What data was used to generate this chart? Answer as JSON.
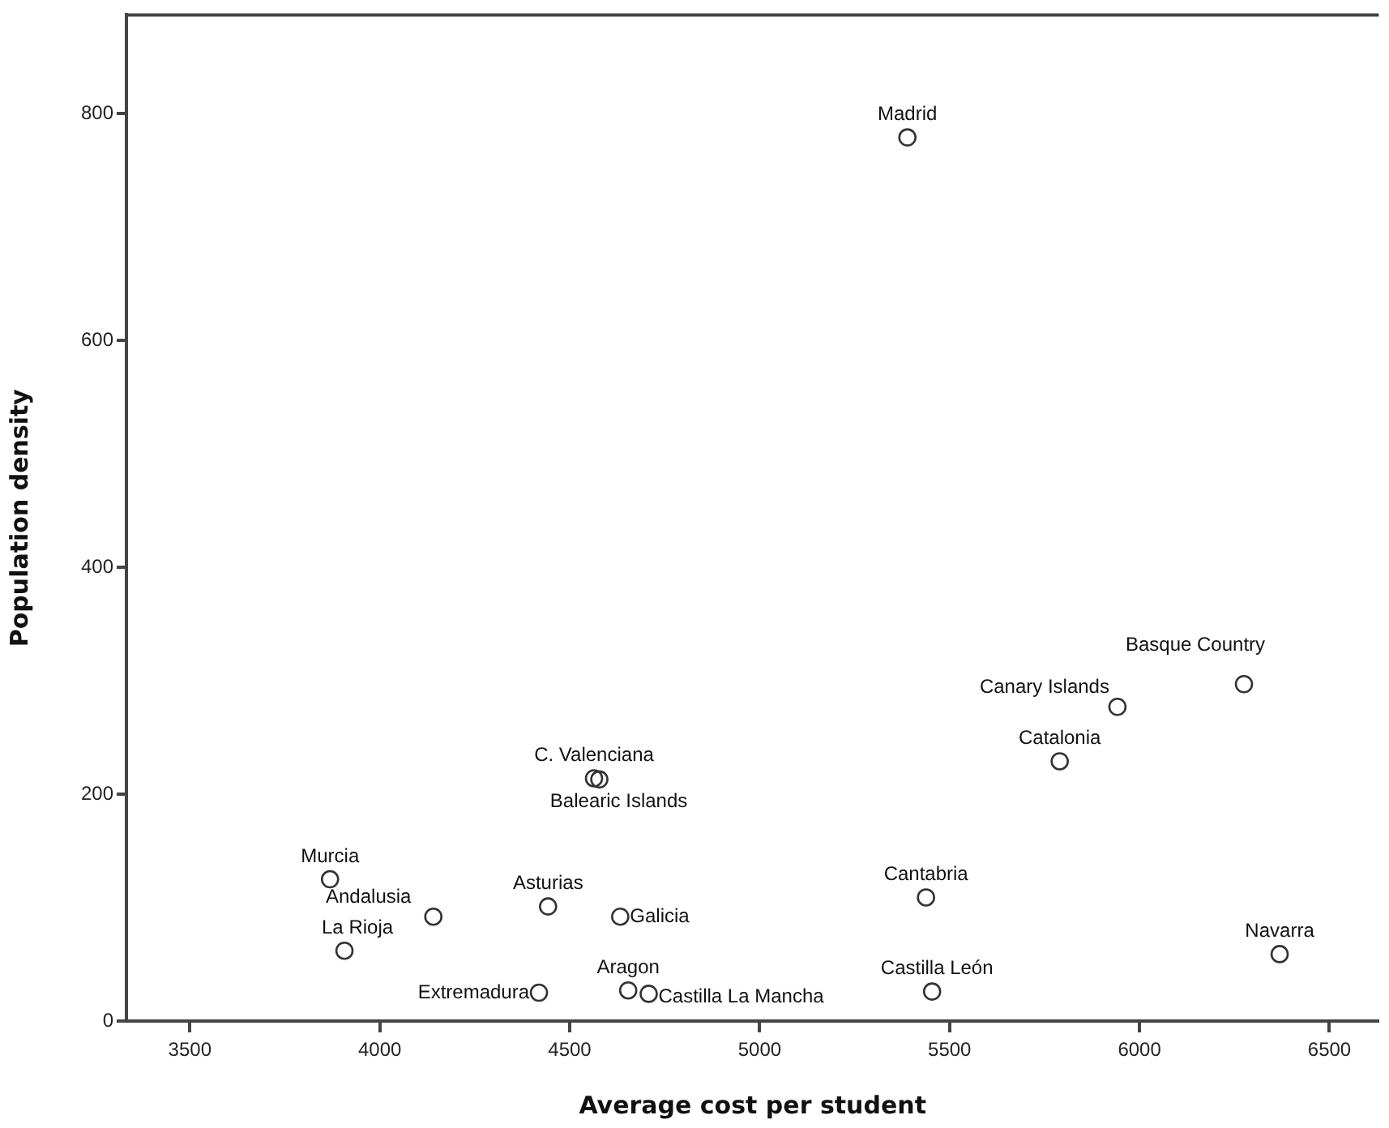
{
  "chart_data": {
    "type": "scatter",
    "xlabel": "Average cost per student",
    "ylabel": "Population density",
    "x": [
      5389,
      6275,
      5942,
      5790,
      4564,
      4578,
      3869,
      4141,
      4443,
      4633,
      3907,
      4419,
      4654,
      4708,
      5438,
      5454,
      6369
    ],
    "values": [
      779,
      297,
      277,
      229,
      214,
      213,
      125,
      92,
      101,
      92,
      62,
      25,
      27,
      24,
      109,
      26,
      59
    ],
    "color": "#333333",
    "marker": "circle",
    "grid": false,
    "legend": false,
    "xlim": [
      3333,
      6630
    ],
    "xticks": [
      3500,
      4000,
      4500,
      5000,
      5500,
      6000,
      6500
    ],
    "ylim": [
      0,
      887
    ],
    "yticks": [
      0,
      200,
      400,
      600,
      800
    ],
    "annotations": [
      {
        "text": "Madrid",
        "x": 5389,
        "y": 779
      },
      {
        "text": "Basque Country",
        "x": 6275,
        "y": 297
      },
      {
        "text": "Canary Islands",
        "x": 5942,
        "y": 277
      },
      {
        "text": "Catalonia",
        "x": 5790,
        "y": 229
      },
      {
        "text": "C. Valenciana",
        "x": 4564,
        "y": 214
      },
      {
        "text": "Balearic Islands",
        "x": 4578,
        "y": 213
      },
      {
        "text": "Murcia",
        "x": 3869,
        "y": 125
      },
      {
        "text": "Andalusia",
        "x": 4141,
        "y": 92
      },
      {
        "text": "Asturias",
        "x": 4443,
        "y": 101
      },
      {
        "text": "Galicia",
        "x": 4633,
        "y": 92
      },
      {
        "text": "La Rioja",
        "x": 3907,
        "y": 62
      },
      {
        "text": "Extremadura",
        "x": 4419,
        "y": 25
      },
      {
        "text": "Aragon",
        "x": 4654,
        "y": 27
      },
      {
        "text": "Castilla La Mancha",
        "x": 4708,
        "y": 24
      },
      {
        "text": "Cantabria",
        "x": 5438,
        "y": 109
      },
      {
        "text": "Castilla León",
        "x": 5454,
        "y": 26
      },
      {
        "text": "Navarra",
        "x": 6369,
        "y": 59
      }
    ]
  }
}
